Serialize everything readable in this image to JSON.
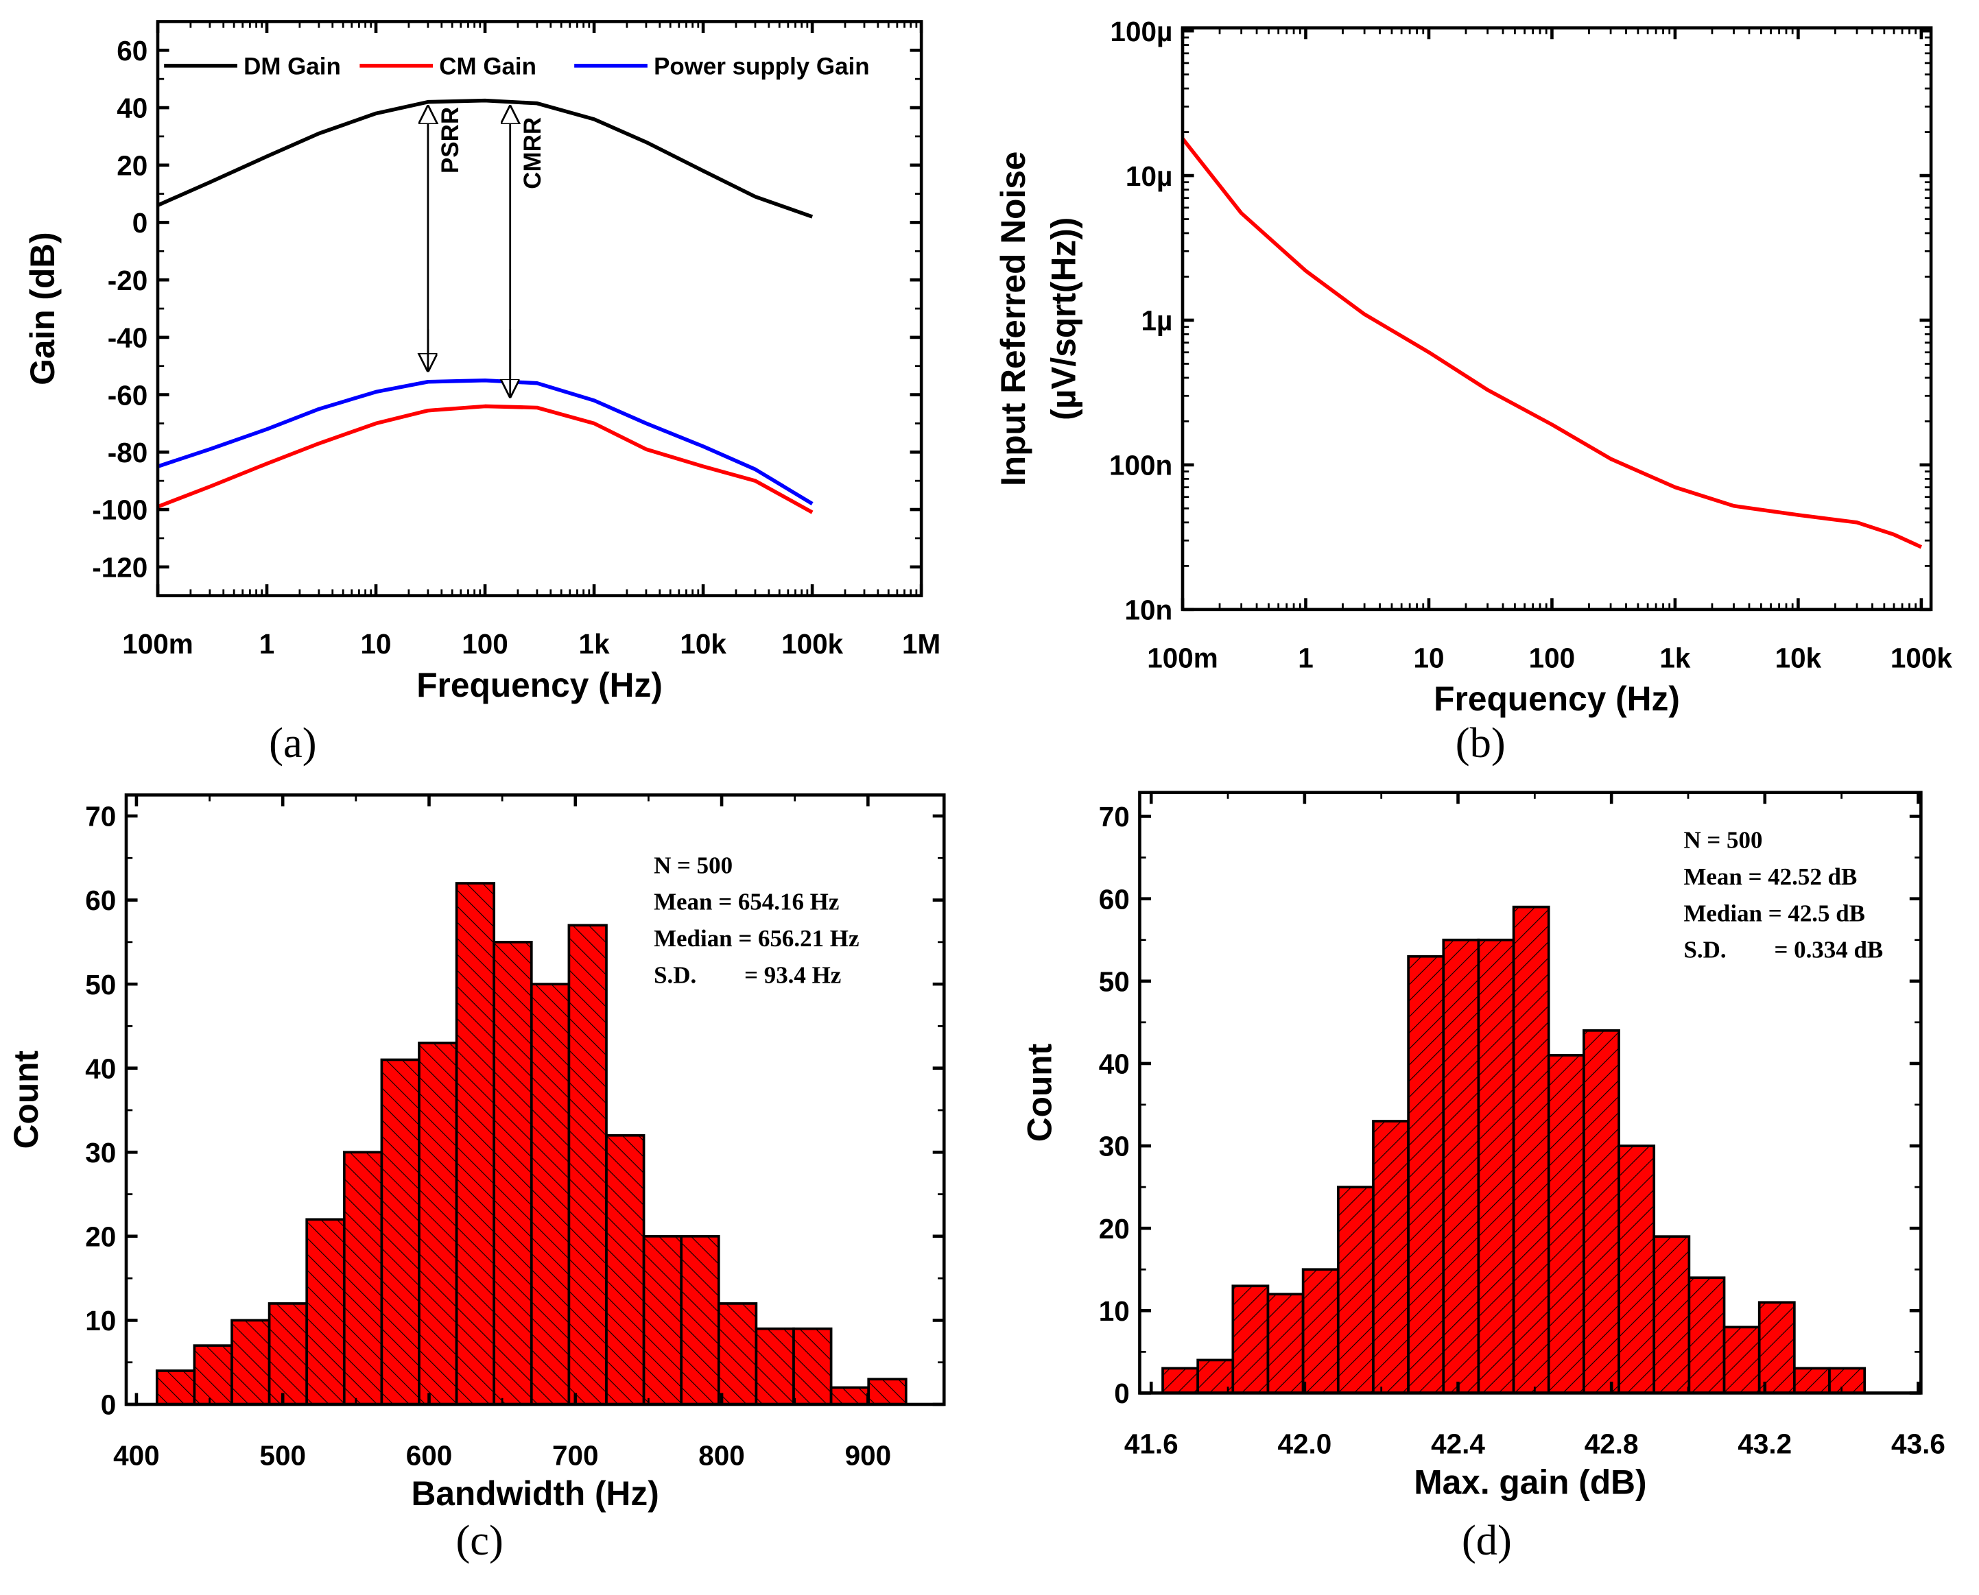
{
  "colors": {
    "dm": "#000000",
    "cm": "#ff0000",
    "ps": "#0000ff",
    "noise": "#ff0000",
    "bar": "#ff0000"
  },
  "chart_data": [
    {
      "id": "a",
      "type": "line",
      "caption": "(a)",
      "xlabel": "Frequency (Hz)",
      "ylabel": "Gain (dB)",
      "xscale": "log",
      "xlim": [
        0.1,
        1000000
      ],
      "ylim": [
        -130,
        70
      ],
      "xticks": [
        0.1,
        1,
        10,
        100,
        1000,
        10000,
        100000,
        1000000
      ],
      "xtick_labels": [
        "100m",
        "1",
        "10",
        "100",
        "1k",
        "10k",
        "100k",
        "1M"
      ],
      "yticks": [
        60,
        40,
        20,
        0,
        -20,
        -40,
        -60,
        -80,
        -100,
        -120
      ],
      "ytick_labels": [
        "60",
        "40",
        "20",
        "0",
        "-20",
        "-40",
        "-60",
        "-80",
        "-100",
        "-120"
      ],
      "legend_position": "top",
      "series": [
        {
          "name": "DM Gain",
          "color": "#000000",
          "x": [
            0.1,
            0.3,
            1,
            3,
            10,
            30,
            100,
            300,
            1000,
            3000,
            10000,
            30000,
            100000
          ],
          "y": [
            6,
            14,
            23,
            31,
            38,
            42,
            42.5,
            41.5,
            36,
            28,
            18,
            9,
            2
          ]
        },
        {
          "name": "CM Gain",
          "color": "#ff0000",
          "x": [
            0.1,
            0.3,
            1,
            3,
            10,
            30,
            100,
            300,
            1000,
            3000,
            10000,
            30000,
            100000
          ],
          "y": [
            -99,
            -92,
            -84,
            -77,
            -70,
            -65.5,
            -64,
            -64.5,
            -70,
            -79,
            -85,
            -90,
            -101
          ]
        },
        {
          "name": "Power supply Gain",
          "color": "#0000ff",
          "x": [
            0.1,
            0.3,
            1,
            3,
            10,
            30,
            100,
            300,
            1000,
            3000,
            10000,
            30000,
            100000
          ],
          "y": [
            -85,
            -79,
            -72,
            -65,
            -59,
            -55.5,
            -55,
            -56,
            -62,
            -70,
            -78,
            -86,
            -98
          ]
        }
      ],
      "annotations": [
        {
          "text": "PSRR",
          "x": 30,
          "y_from": 42,
          "y_to": -55
        },
        {
          "text": "CMRR",
          "x": 170,
          "y_from": 42,
          "y_to": -64
        }
      ]
    },
    {
      "id": "b",
      "type": "line",
      "caption": "(b)",
      "xlabel": "Frequency (Hz)",
      "ylabel": "Input Referred Noise",
      "ylabel2": "(µV/sqrt(Hz))",
      "xscale": "log",
      "yscale": "log",
      "xlim": [
        0.1,
        120000
      ],
      "ylim": [
        1e-08,
        0.000105
      ],
      "xticks": [
        0.1,
        1,
        10,
        100,
        1000,
        10000,
        100000
      ],
      "xtick_labels": [
        "100m",
        "1",
        "10",
        "100",
        "1k",
        "10k",
        "100k"
      ],
      "yticks": [
        1e-08,
        1e-07,
        1e-06,
        1e-05,
        0.0001
      ],
      "ytick_labels": [
        "10n",
        "100n",
        "1µ",
        "10µ",
        "100µ"
      ],
      "series": [
        {
          "name": "Noise",
          "color": "#ff0000",
          "x": [
            0.1,
            0.3,
            1,
            3,
            10,
            30,
            100,
            300,
            1000,
            3000,
            10000,
            30000,
            60000,
            100000
          ],
          "y": [
            1.8e-05,
            5.5e-06,
            2.2e-06,
            1.1e-06,
            6e-07,
            3.3e-07,
            1.9e-07,
            1.1e-07,
            7e-08,
            5.2e-08,
            4.5e-08,
            4e-08,
            3.3e-08,
            2.7e-08
          ]
        }
      ]
    },
    {
      "id": "c",
      "type": "bar",
      "caption": "(c)",
      "xlabel": "Bandwidth (Hz)",
      "ylabel": "Count",
      "xlim": [
        393,
        952
      ],
      "ylim": [
        0,
        72.5
      ],
      "xticks": [
        400,
        500,
        600,
        700,
        800,
        900
      ],
      "xtick_labels": [
        "400",
        "500",
        "600",
        "700",
        "800",
        "900"
      ],
      "yticks": [
        0,
        10,
        20,
        30,
        40,
        50,
        60,
        70
      ],
      "ytick_labels": [
        "0",
        "10",
        "20",
        "30",
        "40",
        "50",
        "60",
        "70"
      ],
      "bin_start": 414,
      "bin_width": 25.6,
      "hatch": "back",
      "values": [
        4,
        7,
        10,
        12,
        22,
        30,
        41,
        43,
        62,
        55,
        50,
        57,
        32,
        20,
        20,
        12,
        9,
        9,
        2,
        3
      ],
      "stats": [
        "N = 500",
        "Mean = 654.16 Hz",
        "Median = 656.21 Hz",
        "S.D.        = 93.4 Hz"
      ]
    },
    {
      "id": "d",
      "type": "bar",
      "caption": "(d)",
      "xlabel": "Max. gain (dB)",
      "ylabel": "Count",
      "xlim": [
        41.57,
        43.607
      ],
      "ylim": [
        0,
        72.9
      ],
      "xticks": [
        41.6,
        42.0,
        42.4,
        42.8,
        43.2,
        43.6
      ],
      "xtick_labels": [
        "41.6",
        "42.0",
        "42.4",
        "42.8",
        "43.2",
        "43.6"
      ],
      "yticks": [
        0,
        10,
        20,
        30,
        40,
        50,
        60,
        70
      ],
      "ytick_labels": [
        "0",
        "10",
        "20",
        "30",
        "40",
        "50",
        "60",
        "70"
      ],
      "bin_start": 41.63,
      "bin_width": 0.0915,
      "hatch": "fwd",
      "values": [
        3,
        4,
        13,
        12,
        15,
        25,
        33,
        53,
        55,
        55,
        59,
        41,
        44,
        30,
        19,
        14,
        8,
        11,
        3,
        3
      ],
      "stats": [
        "N = 500",
        "Mean = 42.52 dB",
        "Median = 42.5 dB",
        "S.D.        = 0.334 dB"
      ]
    }
  ]
}
